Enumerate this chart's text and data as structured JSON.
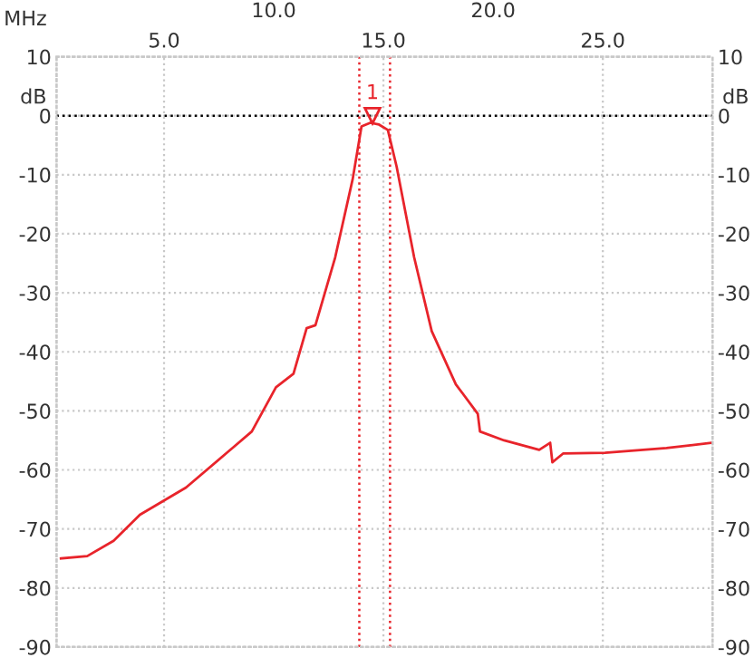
{
  "chart_data": {
    "type": "line",
    "xlabel": "MHz",
    "ylabel": "dB",
    "y2label": "dB",
    "x": [
      0.3,
      1.5,
      2.7,
      3.9,
      6.0,
      9.0,
      10.1,
      10.9,
      11.5,
      11.9,
      12.8,
      13.6,
      14.0,
      14.4,
      14.8,
      15.2,
      15.6,
      16.4,
      17.2,
      18.3,
      19.3,
      19.4,
      20.5,
      22.1,
      22.6,
      22.7,
      23.2,
      25.1,
      27.9,
      30.0
    ],
    "series": [
      {
        "color": "#e8242b",
        "values": [
          -75,
          -74.6,
          -72,
          -67.6,
          -63,
          -53.5,
          -46,
          -43.7,
          -36,
          -35.5,
          -24,
          -10.7,
          -1.8,
          -1.2,
          -1.5,
          -2.4,
          -8.6,
          -24,
          -36.5,
          -45.5,
          -50.5,
          -53.5,
          -55,
          -56.6,
          -55.4,
          -58.7,
          -57.2,
          -57.1,
          -56.3,
          -55.4
        ]
      }
    ],
    "xlim": [
      0.1,
      30.0
    ],
    "xticks": [
      {
        "value": 5,
        "label": "5.0"
      },
      {
        "value": 15,
        "label": "15.0"
      },
      {
        "value": 25,
        "label": "25.0"
      }
    ],
    "x2lim": [
      0.1,
      30.0
    ],
    "x2ticks": [
      {
        "value": 10,
        "label": "10.0"
      },
      {
        "value": 20,
        "label": "20.0"
      }
    ],
    "ylim": [
      -90,
      10
    ],
    "yticks": [
      -90,
      -80,
      -70,
      -60,
      -50,
      -40,
      -30,
      -20,
      -10,
      0,
      10
    ],
    "y2lim": [
      -90,
      10
    ],
    "y2ticks": [
      -90,
      -80,
      -70,
      -60,
      -50,
      -40,
      -30,
      -20,
      -10,
      0,
      10
    ],
    "grid": true,
    "marker": "none",
    "line_style": "solid",
    "ref_lines": [
      {
        "axis": "y",
        "value": 0,
        "color": "#000000",
        "line_style": "dotted"
      },
      {
        "axis": "x",
        "value": 13.9,
        "color": "#e8242b",
        "line_style": "dotted"
      },
      {
        "axis": "x",
        "value": 15.3,
        "color": "#e8242b",
        "line_style": "dotted"
      }
    ],
    "annotations": [
      {
        "text": "1",
        "x": 14.5,
        "y": 0
      }
    ]
  }
}
